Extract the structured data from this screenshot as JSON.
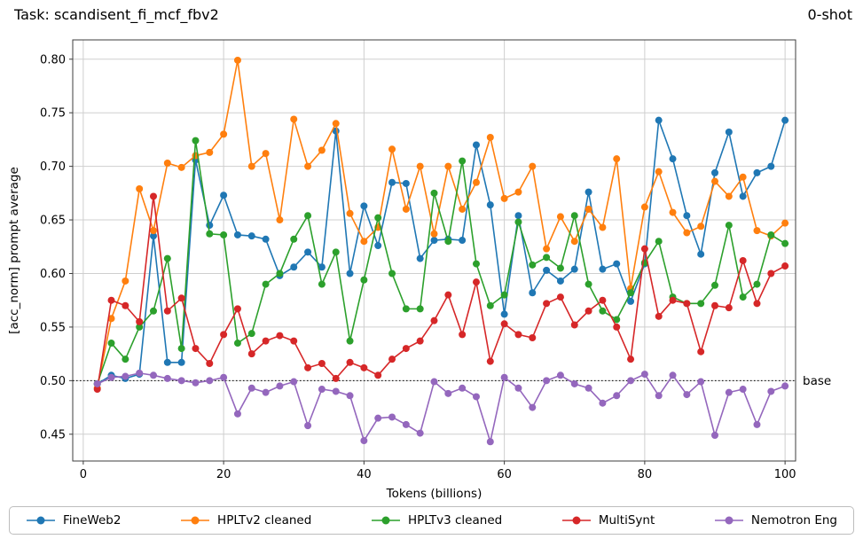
{
  "header": {
    "title": "Task: scandisent_fi_mcf_fbv2",
    "shot": "0-shot"
  },
  "chart_data": {
    "type": "line",
    "title": "Task: scandisent_fi_mcf_fbv2",
    "shot_label": "0-shot",
    "xlabel": "Tokens (billions)",
    "ylabel": "[acc_norm] prompt average",
    "xlim": [
      -1.5,
      101.5
    ],
    "ylim": [
      0.425,
      0.818
    ],
    "xticks": [
      0,
      20,
      40,
      60,
      80,
      100
    ],
    "yticks": [
      0.45,
      0.5,
      0.55,
      0.6,
      0.65,
      0.7,
      0.75,
      0.8
    ],
    "grid": true,
    "legend_position": "bottom",
    "baseline": {
      "value": 0.5,
      "label": "base"
    },
    "x": [
      2,
      4,
      6,
      8,
      10,
      12,
      14,
      16,
      18,
      20,
      22,
      24,
      26,
      28,
      30,
      32,
      34,
      36,
      38,
      40,
      42,
      44,
      46,
      48,
      50,
      52,
      54,
      56,
      58,
      60,
      62,
      64,
      66,
      68,
      70,
      72,
      74,
      76,
      78,
      80,
      82,
      84,
      86,
      88,
      90,
      92,
      94,
      96,
      98,
      100
    ],
    "series": [
      {
        "name": "FineWeb2",
        "color": "#1f77b4",
        "values": [
          0.497,
          0.505,
          0.502,
          0.506,
          0.635,
          0.517,
          0.517,
          0.706,
          0.645,
          0.673,
          0.636,
          0.635,
          0.632,
          0.598,
          0.606,
          0.62,
          0.606,
          0.733,
          0.6,
          0.663,
          0.626,
          0.685,
          0.684,
          0.614,
          0.631,
          0.632,
          0.631,
          0.72,
          0.664,
          0.562,
          0.654,
          0.582,
          0.603,
          0.593,
          0.604,
          0.676,
          0.604,
          0.609,
          0.574,
          0.609,
          0.743,
          0.707,
          0.654,
          0.618,
          0.694,
          0.732,
          0.672,
          0.694,
          0.7,
          0.743
        ]
      },
      {
        "name": "HPLTv2 cleaned",
        "color": "#ff7f0e",
        "values": [
          0.493,
          0.558,
          0.593,
          0.679,
          0.64,
          0.703,
          0.699,
          0.71,
          0.713,
          0.73,
          0.799,
          0.7,
          0.712,
          0.65,
          0.744,
          0.7,
          0.715,
          0.74,
          0.656,
          0.63,
          0.643,
          0.716,
          0.66,
          0.7,
          0.637,
          0.7,
          0.66,
          0.685,
          0.727,
          0.67,
          0.676,
          0.7,
          0.623,
          0.653,
          0.63,
          0.66,
          0.643,
          0.707,
          0.586,
          0.662,
          0.695,
          0.657,
          0.638,
          0.644,
          0.686,
          0.672,
          0.69,
          0.64,
          0.635,
          0.647
        ]
      },
      {
        "name": "HPLTv3 cleaned",
        "color": "#2ca02c",
        "values": [
          0.497,
          0.535,
          0.52,
          0.55,
          0.565,
          0.614,
          0.53,
          0.724,
          0.637,
          0.636,
          0.535,
          0.544,
          0.59,
          0.6,
          0.632,
          0.654,
          0.59,
          0.62,
          0.537,
          0.594,
          0.652,
          0.6,
          0.567,
          0.567,
          0.675,
          0.63,
          0.705,
          0.609,
          0.57,
          0.58,
          0.648,
          0.608,
          0.615,
          0.605,
          0.654,
          0.59,
          0.565,
          0.557,
          0.582,
          0.61,
          0.63,
          0.578,
          0.572,
          0.572,
          0.589,
          0.645,
          0.578,
          0.59,
          0.636,
          0.628
        ]
      },
      {
        "name": "MultiSynt",
        "color": "#d62728",
        "values": [
          0.492,
          0.575,
          0.57,
          0.555,
          0.672,
          0.565,
          0.577,
          0.53,
          0.516,
          0.543,
          0.567,
          0.525,
          0.537,
          0.542,
          0.537,
          0.512,
          0.516,
          0.502,
          0.517,
          0.512,
          0.505,
          0.52,
          0.53,
          0.537,
          0.556,
          0.58,
          0.543,
          0.592,
          0.518,
          0.553,
          0.543,
          0.54,
          0.572,
          0.578,
          0.552,
          0.565,
          0.575,
          0.55,
          0.52,
          0.623,
          0.56,
          0.575,
          0.572,
          0.527,
          0.57,
          0.568,
          0.612,
          0.572,
          0.6,
          0.607
        ]
      },
      {
        "name": "Nemotron Eng",
        "color": "#9467bd",
        "values": [
          0.497,
          0.503,
          0.504,
          0.507,
          0.505,
          0.502,
          0.5,
          0.498,
          0.5,
          0.503,
          0.469,
          0.493,
          0.489,
          0.495,
          0.499,
          0.458,
          0.492,
          0.49,
          0.486,
          0.444,
          0.465,
          0.466,
          0.459,
          0.451,
          0.499,
          0.488,
          0.493,
          0.485,
          0.443,
          0.503,
          0.493,
          0.475,
          0.5,
          0.505,
          0.497,
          0.493,
          0.479,
          0.486,
          0.5,
          0.506,
          0.486,
          0.505,
          0.487,
          0.499,
          0.449,
          0.489,
          0.492,
          0.459,
          0.49,
          0.495
        ]
      }
    ]
  }
}
